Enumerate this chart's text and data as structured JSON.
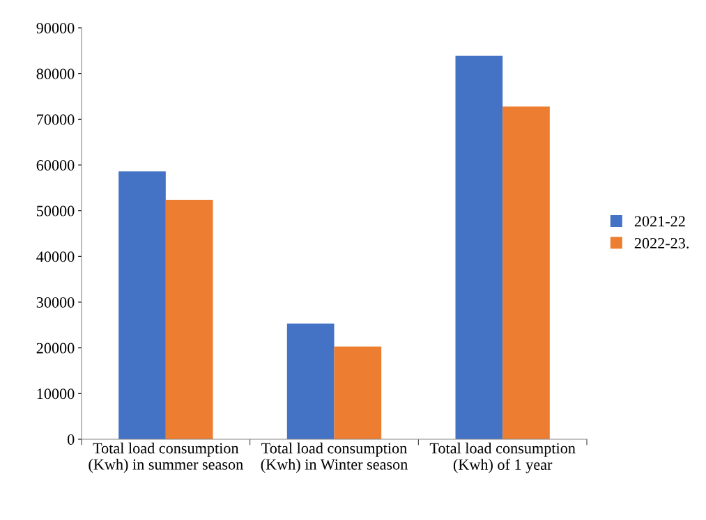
{
  "chart_data": {
    "type": "bar",
    "categories": [
      "Total load consumption (Kwh) in summer season",
      "Total load consumption (Kwh) in Winter season",
      "Total load consumption (Kwh) of 1 year"
    ],
    "series": [
      {
        "name": "2021-22",
        "color": "#4472c4",
        "values": [
          58600,
          25300,
          83900
        ]
      },
      {
        "name": "2022-23.",
        "color": "#ed7d31",
        "values": [
          52400,
          20300,
          72800
        ]
      }
    ],
    "ylim": [
      0,
      90000
    ],
    "yticks": [
      0,
      10000,
      20000,
      30000,
      40000,
      50000,
      60000,
      70000,
      80000,
      90000
    ],
    "grid": false,
    "legend": "right"
  }
}
